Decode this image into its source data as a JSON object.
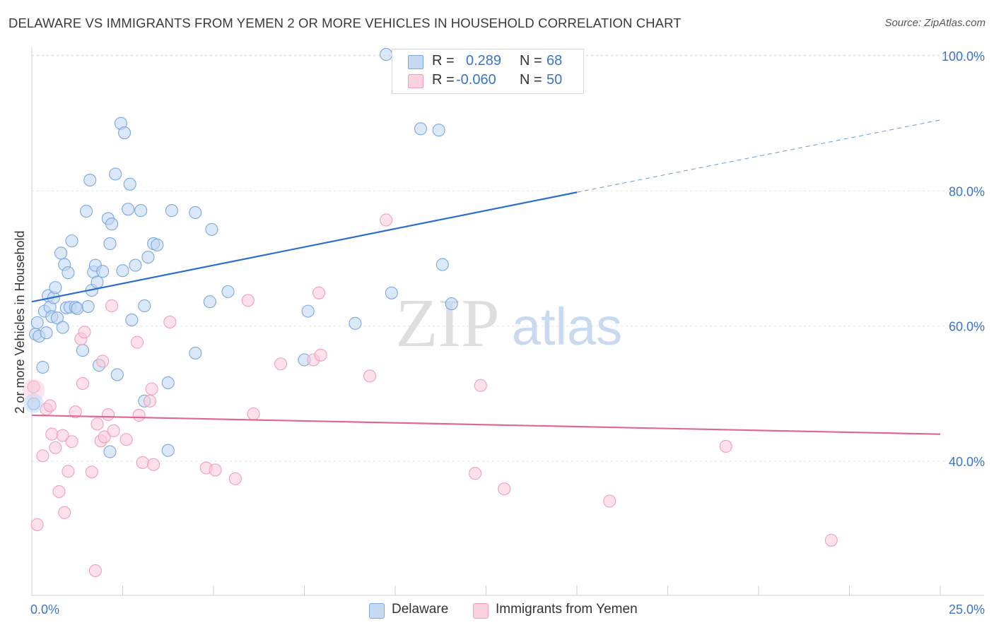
{
  "header": {
    "title": "DELAWARE VS IMMIGRANTS FROM YEMEN 2 OR MORE VEHICLES IN HOUSEHOLD CORRELATION CHART",
    "source": "Source: ZipAtlas.com"
  },
  "watermark": {
    "zip": "ZIP",
    "atlas": "atlas"
  },
  "legend": {
    "rows": [
      {
        "r_label": "R =",
        "r_value": "0.289",
        "n_label": "N =",
        "n_value": "68",
        "color": "#7ba7e0"
      },
      {
        "r_label": "R =",
        "r_value": "-0.060",
        "n_label": "N =",
        "n_value": "50",
        "color": "#f0a0b8"
      }
    ]
  },
  "bottom_legend": {
    "items": [
      {
        "label": "Delaware",
        "color": "#7ba7e0"
      },
      {
        "label": "Immigrants from Yemen",
        "color": "#f0a0b8"
      }
    ]
  },
  "chart_data": {
    "type": "scatter",
    "title": "DELAWARE VS IMMIGRANTS FROM YEMEN 2 OR MORE VEHICLES IN HOUSEHOLD CORRELATION CHART",
    "xlabel": "",
    "ylabel": "2 or more Vehicles in Household",
    "xlim": [
      0,
      25
    ],
    "ylim": [
      20,
      102
    ],
    "x_tick_labels": [
      "0.0%",
      "25.0%"
    ],
    "y_ticks": [
      40,
      60,
      80,
      100
    ],
    "y_tick_labels": [
      "40.0%",
      "60.0%",
      "80.0%",
      "100.0%"
    ],
    "grid": true,
    "legend_position": "top-center",
    "series": [
      {
        "name": "Delaware",
        "color": "#7ba7e0",
        "line_color": "#2a6fcb",
        "trend": {
          "x0": 0,
          "y0": 63.6,
          "x1": 15.0,
          "y1": 79.8,
          "x_dash_end": 25.0,
          "y_dash_end": 90.5
        },
        "points": [
          [
            0.1,
            58.8
          ],
          [
            0.15,
            60.5
          ],
          [
            0.2,
            58.5
          ],
          [
            0.3,
            53.9
          ],
          [
            0.35,
            62.2
          ],
          [
            0.4,
            59.0
          ],
          [
            0.45,
            64.5
          ],
          [
            0.5,
            62.8
          ],
          [
            0.55,
            61.4
          ],
          [
            0.6,
            64.2
          ],
          [
            0.65,
            65.7
          ],
          [
            0.7,
            61.2
          ],
          [
            0.8,
            70.8
          ],
          [
            0.85,
            59.8
          ],
          [
            0.9,
            69.1
          ],
          [
            0.95,
            62.7
          ],
          [
            1.0,
            67.9
          ],
          [
            1.05,
            62.8
          ],
          [
            1.1,
            72.6
          ],
          [
            1.2,
            62.8
          ],
          [
            1.25,
            62.6
          ],
          [
            1.4,
            56.4
          ],
          [
            1.5,
            77.0
          ],
          [
            1.55,
            62.9
          ],
          [
            1.6,
            81.6
          ],
          [
            1.65,
            65.3
          ],
          [
            1.7,
            68.0
          ],
          [
            1.75,
            69.0
          ],
          [
            1.8,
            66.5
          ],
          [
            1.85,
            54.2
          ],
          [
            1.95,
            68.1
          ],
          [
            2.1,
            75.9
          ],
          [
            2.15,
            72.2
          ],
          [
            2.2,
            75.1
          ],
          [
            2.3,
            82.5
          ],
          [
            2.35,
            52.8
          ],
          [
            2.45,
            90.0
          ],
          [
            2.5,
            68.2
          ],
          [
            2.55,
            88.6
          ],
          [
            2.65,
            77.3
          ],
          [
            2.7,
            81.0
          ],
          [
            2.75,
            60.9
          ],
          [
            2.85,
            69.0
          ],
          [
            3.0,
            77.1
          ],
          [
            3.1,
            63.0
          ],
          [
            3.2,
            70.2
          ],
          [
            3.35,
            72.2
          ],
          [
            3.45,
            72.0
          ],
          [
            3.1,
            48.9
          ],
          [
            3.75,
            51.6
          ],
          [
            3.75,
            41.6
          ],
          [
            2.15,
            41.4
          ],
          [
            3.85,
            77.1
          ],
          [
            4.5,
            76.8
          ],
          [
            4.5,
            56.0
          ],
          [
            4.9,
            63.6
          ],
          [
            4.95,
            74.3
          ],
          [
            5.4,
            65.1
          ],
          [
            7.5,
            55.0
          ],
          [
            7.6,
            62.2
          ],
          [
            8.9,
            60.4
          ],
          [
            9.75,
            100.2
          ],
          [
            9.9,
            64.9
          ],
          [
            10.7,
            89.2
          ],
          [
            11.2,
            89.0
          ],
          [
            11.3,
            69.1
          ],
          [
            11.55,
            63.3
          ],
          [
            0.05,
            48.5
          ]
        ]
      },
      {
        "name": "Immigrants from Yemen",
        "color": "#f0a0b8",
        "line_color": "#e06890",
        "trend": {
          "x0": 0,
          "y0": 46.8,
          "x1": 25.0,
          "y1": 44.0
        },
        "points": [
          [
            0.05,
            51.0
          ],
          [
            0.15,
            30.6
          ],
          [
            0.3,
            40.8
          ],
          [
            0.4,
            47.7
          ],
          [
            0.5,
            48.2
          ],
          [
            0.55,
            44.0
          ],
          [
            0.65,
            42.0
          ],
          [
            0.75,
            35.5
          ],
          [
            0.85,
            43.8
          ],
          [
            0.9,
            32.4
          ],
          [
            1.0,
            38.5
          ],
          [
            1.1,
            42.9
          ],
          [
            1.2,
            47.3
          ],
          [
            1.35,
            58.1
          ],
          [
            1.4,
            51.5
          ],
          [
            1.45,
            59.1
          ],
          [
            1.65,
            38.4
          ],
          [
            1.75,
            23.8
          ],
          [
            1.8,
            45.5
          ],
          [
            1.9,
            43.0
          ],
          [
            1.95,
            54.8
          ],
          [
            2.0,
            43.6
          ],
          [
            2.1,
            46.9
          ],
          [
            2.2,
            63.0
          ],
          [
            2.25,
            44.5
          ],
          [
            2.9,
            57.6
          ],
          [
            2.95,
            46.8
          ],
          [
            3.05,
            39.8
          ],
          [
            3.25,
            48.9
          ],
          [
            3.3,
            50.7
          ],
          [
            3.35,
            39.5
          ],
          [
            3.8,
            60.6
          ],
          [
            4.8,
            39.0
          ],
          [
            5.05,
            38.7
          ],
          [
            5.6,
            37.4
          ],
          [
            5.95,
            63.8
          ],
          [
            6.1,
            47.0
          ],
          [
            6.85,
            54.4
          ],
          [
            7.75,
            55.0
          ],
          [
            7.9,
            64.9
          ],
          [
            7.95,
            55.7
          ],
          [
            9.3,
            52.6
          ],
          [
            9.75,
            75.7
          ],
          [
            12.2,
            38.2
          ],
          [
            12.35,
            51.2
          ],
          [
            13.0,
            35.9
          ],
          [
            15.9,
            34.1
          ],
          [
            19.1,
            42.2
          ],
          [
            22.0,
            28.3
          ],
          [
            2.6,
            43.2
          ]
        ]
      }
    ]
  }
}
